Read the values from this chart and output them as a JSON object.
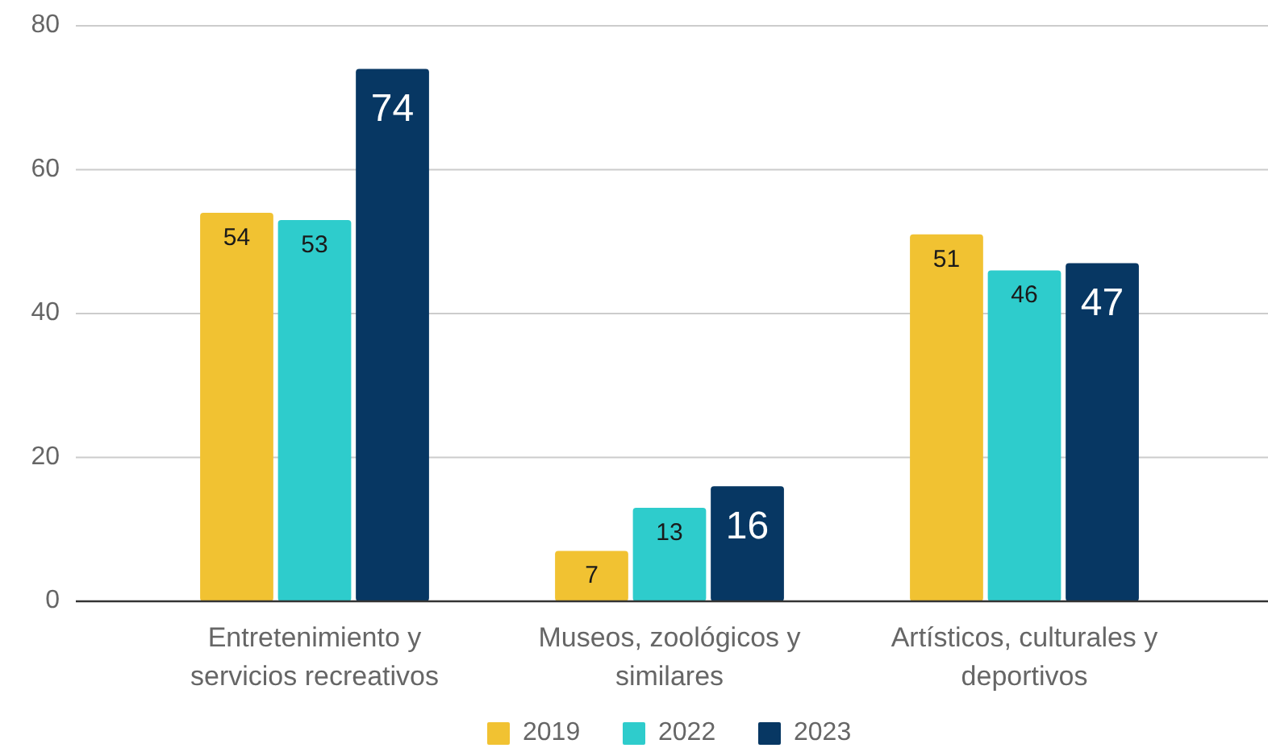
{
  "chart_data": {
    "type": "bar",
    "categories": [
      "Entretenimiento y servicios recreativos",
      "Museos, zoológicos y similares",
      "Artísticos, culturales y deportivos"
    ],
    "series": [
      {
        "name": "2019",
        "color": "#f1c232",
        "values": [
          54,
          7,
          51
        ]
      },
      {
        "name": "2022",
        "color": "#2ecccc",
        "values": [
          53,
          13,
          46
        ]
      },
      {
        "name": "2023",
        "color": "#073763",
        "values": [
          74,
          16,
          47
        ]
      }
    ],
    "ylim": [
      0,
      80
    ],
    "yticks": [
      0,
      20,
      40,
      60,
      80
    ],
    "grid": "y",
    "legend": "bottom",
    "data_labels": true
  }
}
